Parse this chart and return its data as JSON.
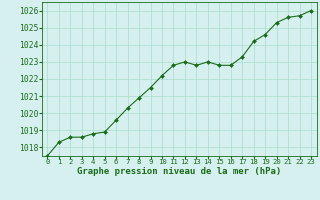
{
  "x": [
    0,
    1,
    2,
    3,
    4,
    5,
    6,
    7,
    8,
    9,
    10,
    11,
    12,
    13,
    14,
    15,
    16,
    17,
    18,
    19,
    20,
    21,
    22,
    23
  ],
  "y": [
    1017.5,
    1018.3,
    1018.6,
    1018.6,
    1018.8,
    1018.9,
    1019.6,
    1020.3,
    1020.9,
    1021.5,
    1022.2,
    1022.8,
    1023.0,
    1022.8,
    1023.0,
    1022.8,
    1022.8,
    1023.3,
    1024.2,
    1024.6,
    1025.3,
    1025.6,
    1025.7,
    1026.0
  ],
  "ylim": [
    1017.5,
    1026.5
  ],
  "yticks": [
    1018,
    1019,
    1020,
    1021,
    1022,
    1023,
    1024,
    1025,
    1026
  ],
  "xticks": [
    0,
    1,
    2,
    3,
    4,
    5,
    6,
    7,
    8,
    9,
    10,
    11,
    12,
    13,
    14,
    15,
    16,
    17,
    18,
    19,
    20,
    21,
    22,
    23
  ],
  "xlabel": "Graphe pression niveau de la mer (hPa)",
  "line_color": "#1a6b1a",
  "marker_color": "#1a6b1a",
  "bg_color": "#d6f0f0",
  "grid_color": "#aaddcc",
  "axis_label_color": "#1a6b1a",
  "tick_color": "#1a6b1a",
  "xlabel_fontsize": 6.5,
  "ytick_fontsize": 5.8,
  "xtick_fontsize": 5.2
}
